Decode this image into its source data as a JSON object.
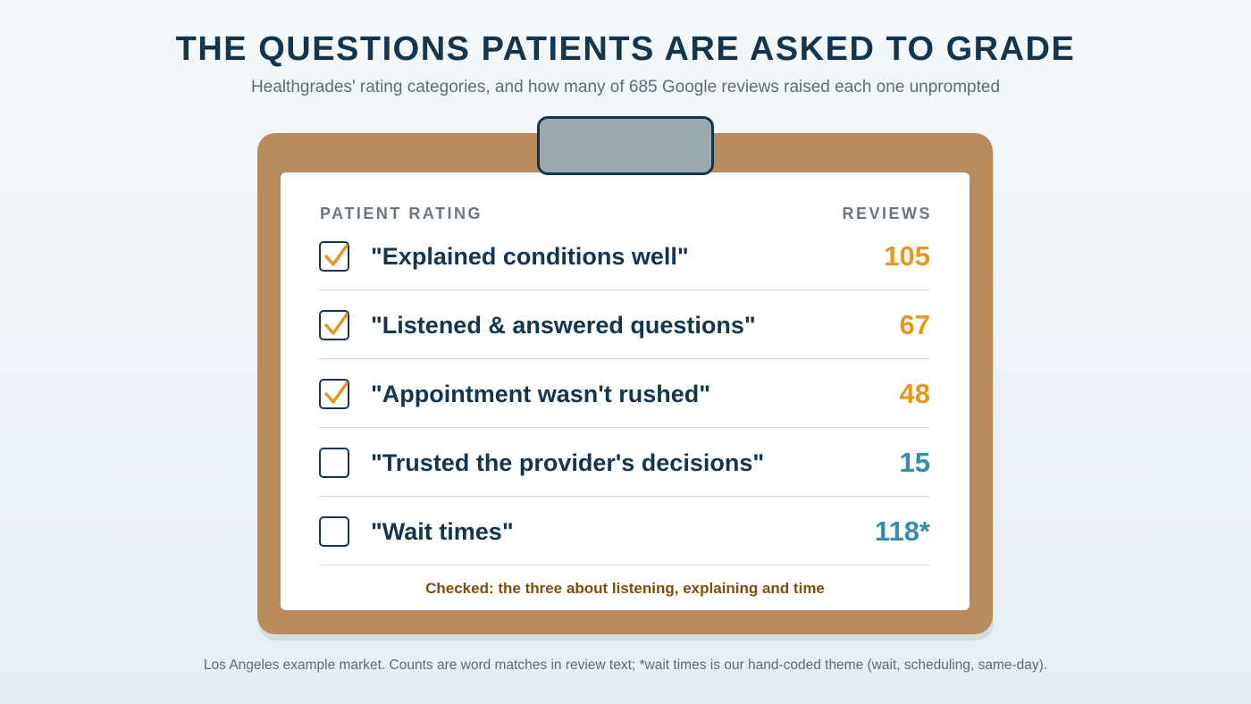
{
  "header": {
    "title": "THE QUESTIONS PATIENTS ARE ASKED TO GRADE",
    "subtitle": "Healthgrades' rating categories, and how many of 685 Google reviews raised each one unprompted"
  },
  "table": {
    "col_rating": "PATIENT RATING",
    "col_reviews": "REVIEWS",
    "rows": [
      {
        "label": "\"Explained conditions well\"",
        "count": "105",
        "checked": true
      },
      {
        "label": "\"Listened & answered questions\"",
        "count": "67",
        "checked": true
      },
      {
        "label": "\"Appointment wasn't rushed\"",
        "count": "48",
        "checked": true
      },
      {
        "label": "\"Trusted the provider's decisions\"",
        "count": "15",
        "checked": false
      },
      {
        "label": "\"Wait times\"",
        "count": "118*",
        "checked": false
      }
    ],
    "note": "Checked: the three about listening, explaining and time"
  },
  "footer": {
    "text": "Los Angeles example market. Counts are word matches in review text; *wait times is our hand-coded theme (wait, scheduling, same-day)."
  },
  "colors": {
    "checked_count": "#e8961e",
    "unchecked_count": "#2e8fb0",
    "checkmark": "#e8961e",
    "ink": "#14354d",
    "board": "#ba8c5c"
  }
}
